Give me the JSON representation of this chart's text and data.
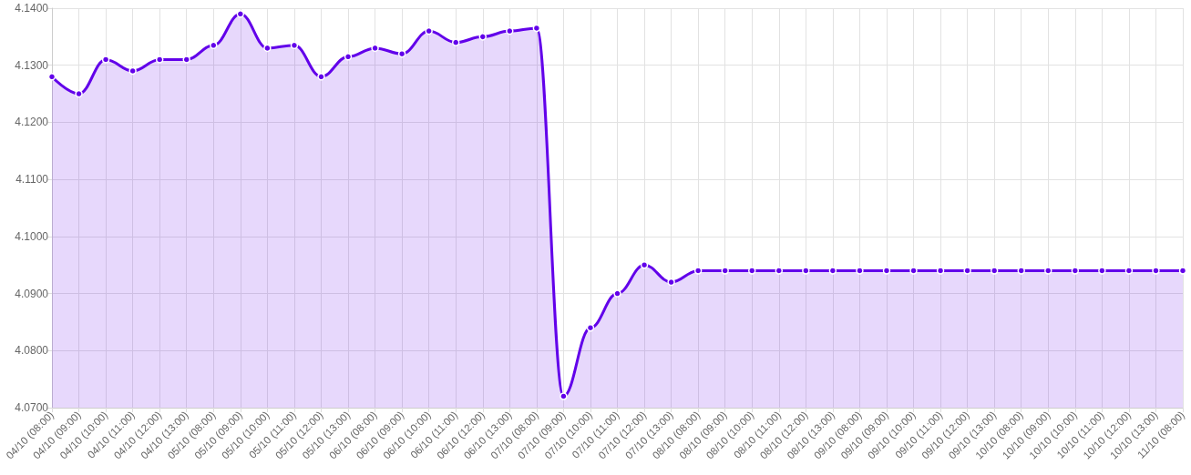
{
  "chart_data": {
    "type": "area",
    "categories": [
      "04/10 (08:00)",
      "04/10 (09:00)",
      "04/10 (10:00)",
      "04/10 (11:00)",
      "04/10 (12:00)",
      "04/10 (13:00)",
      "05/10 (08:00)",
      "05/10 (09:00)",
      "05/10 (10:00)",
      "05/10 (11:00)",
      "05/10 (12:00)",
      "05/10 (13:00)",
      "06/10 (08:00)",
      "06/10 (09:00)",
      "06/10 (10:00)",
      "06/10 (11:00)",
      "06/10 (12:00)",
      "06/10 (13:00)",
      "07/10 (08:00)",
      "07/10 (09:00)",
      "07/10 (10:00)",
      "07/10 (11:00)",
      "07/10 (12:00)",
      "07/10 (13:00)",
      "08/10 (08:00)",
      "08/10 (09:00)",
      "08/10 (10:00)",
      "08/10 (11:00)",
      "08/10 (12:00)",
      "08/10 (13:00)",
      "09/10 (08:00)",
      "09/10 (09:00)",
      "09/10 (10:00)",
      "09/10 (11:00)",
      "09/10 (12:00)",
      "09/10 (13:00)",
      "10/10 (08:00)",
      "10/10 (09:00)",
      "10/10 (10:00)",
      "10/10 (11:00)",
      "10/10 (12:00)",
      "10/10 (13:00)",
      "11/10 (08:00)"
    ],
    "series": [
      {
        "color": "#6200ea",
        "values": [
          4.128,
          4.125,
          4.131,
          4.129,
          4.131,
          4.131,
          4.1335,
          4.139,
          4.133,
          4.1335,
          4.128,
          4.1315,
          4.133,
          4.132,
          4.136,
          4.134,
          4.135,
          4.136,
          4.1365,
          4.072,
          4.084,
          4.09,
          4.095,
          4.092,
          4.094,
          4.094,
          4.094,
          4.094,
          4.094,
          4.094,
          4.094,
          4.094,
          4.094,
          4.094,
          4.094,
          4.094,
          4.094,
          4.094,
          4.094,
          4.094,
          4.094,
          4.094,
          4.094
        ]
      }
    ],
    "ylim": [
      4.07,
      4.14
    ],
    "yticks": [
      {
        "value": 4.07,
        "label": "4.0700"
      },
      {
        "value": 4.08,
        "label": "4.0800"
      },
      {
        "value": 4.09,
        "label": "4.0900"
      },
      {
        "value": 4.1,
        "label": "4.1000"
      },
      {
        "value": 4.11,
        "label": "4.1100"
      },
      {
        "value": 4.12,
        "label": "4.1200"
      },
      {
        "value": 4.13,
        "label": "4.1300"
      },
      {
        "value": 4.14,
        "label": "4.1400"
      }
    ],
    "grid": true,
    "marker": "circle",
    "line_style": "solid"
  }
}
